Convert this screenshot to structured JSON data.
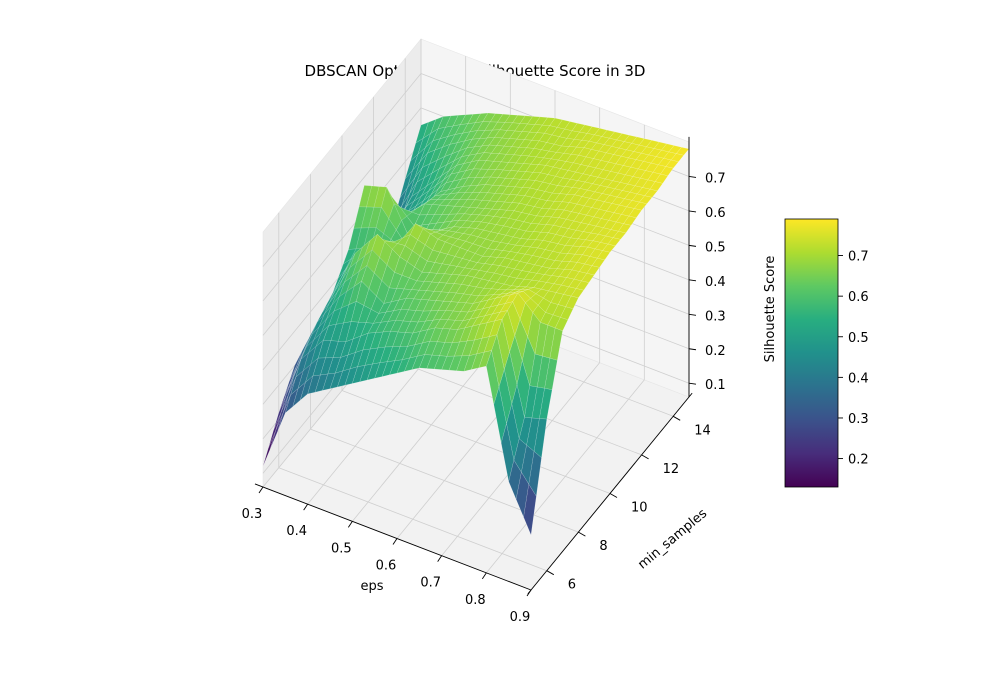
{
  "chart_data": {
    "type": "surface3d",
    "title": "DBSCAN Optimization: Silhouette Score in 3D",
    "xlabel": "eps",
    "ylabel": "min_samples",
    "zlabel": "",
    "colorbar_label": "Silhouette Score",
    "colormap": "viridis",
    "xlim": [
      0.3,
      0.9
    ],
    "ylim": [
      5,
      15
    ],
    "zlim": [
      0.1,
      0.78
    ],
    "x_ticks": [
      "0.3",
      "0.4",
      "0.5",
      "0.6",
      "0.7",
      "0.8",
      "0.9"
    ],
    "y_ticks": [
      "6",
      "8",
      "10",
      "12",
      "14"
    ],
    "z_ticks": [
      "0.1",
      "0.2",
      "0.3",
      "0.4",
      "0.5",
      "0.6",
      "0.7"
    ],
    "colorbar_ticks": [
      "0.2",
      "0.3",
      "0.4",
      "0.5",
      "0.6",
      "0.7"
    ],
    "colorbar_range": [
      0.13,
      0.79
    ],
    "eps_grid": [
      0.3,
      0.35,
      0.4,
      0.45,
      0.5,
      0.55,
      0.6,
      0.65,
      0.7,
      0.75,
      0.8,
      0.85,
      0.9
    ],
    "min_samples_grid": [
      5,
      6,
      7,
      8,
      9,
      10,
      11,
      12,
      13,
      14,
      15
    ],
    "silhouette_scores": [
      [
        0.12,
        0.22,
        0.3,
        0.2,
        0.32,
        0.25,
        0.33,
        0.3,
        0.34,
        0.45,
        0.55
      ],
      [
        0.3,
        0.4,
        0.45,
        0.48,
        0.55,
        0.68,
        0.5,
        0.45,
        0.48,
        0.55,
        0.6
      ],
      [
        0.38,
        0.48,
        0.55,
        0.62,
        0.58,
        0.7,
        0.56,
        0.52,
        0.55,
        0.6,
        0.63
      ],
      [
        0.42,
        0.5,
        0.62,
        0.7,
        0.6,
        0.58,
        0.62,
        0.6,
        0.62,
        0.64,
        0.66
      ],
      [
        0.46,
        0.55,
        0.58,
        0.66,
        0.7,
        0.62,
        0.64,
        0.64,
        0.66,
        0.67,
        0.68
      ],
      [
        0.5,
        0.58,
        0.62,
        0.64,
        0.68,
        0.66,
        0.66,
        0.67,
        0.68,
        0.69,
        0.7
      ],
      [
        0.54,
        0.6,
        0.64,
        0.66,
        0.68,
        0.68,
        0.68,
        0.69,
        0.7,
        0.71,
        0.72
      ],
      [
        0.58,
        0.64,
        0.66,
        0.68,
        0.68,
        0.69,
        0.7,
        0.71,
        0.72,
        0.72,
        0.73
      ],
      [
        0.6,
        0.66,
        0.68,
        0.69,
        0.7,
        0.7,
        0.71,
        0.72,
        0.73,
        0.74,
        0.74
      ],
      [
        0.62,
        0.7,
        0.72,
        0.7,
        0.71,
        0.72,
        0.73,
        0.74,
        0.74,
        0.75,
        0.75
      ],
      [
        0.66,
        0.74,
        0.76,
        0.72,
        0.72,
        0.73,
        0.74,
        0.75,
        0.75,
        0.76,
        0.76
      ],
      [
        0.35,
        0.48,
        0.7,
        0.73,
        0.74,
        0.75,
        0.75,
        0.76,
        0.76,
        0.77,
        0.77
      ],
      [
        0.22,
        0.5,
        0.7,
        0.74,
        0.75,
        0.76,
        0.76,
        0.77,
        0.77,
        0.78,
        0.78
      ]
    ]
  }
}
